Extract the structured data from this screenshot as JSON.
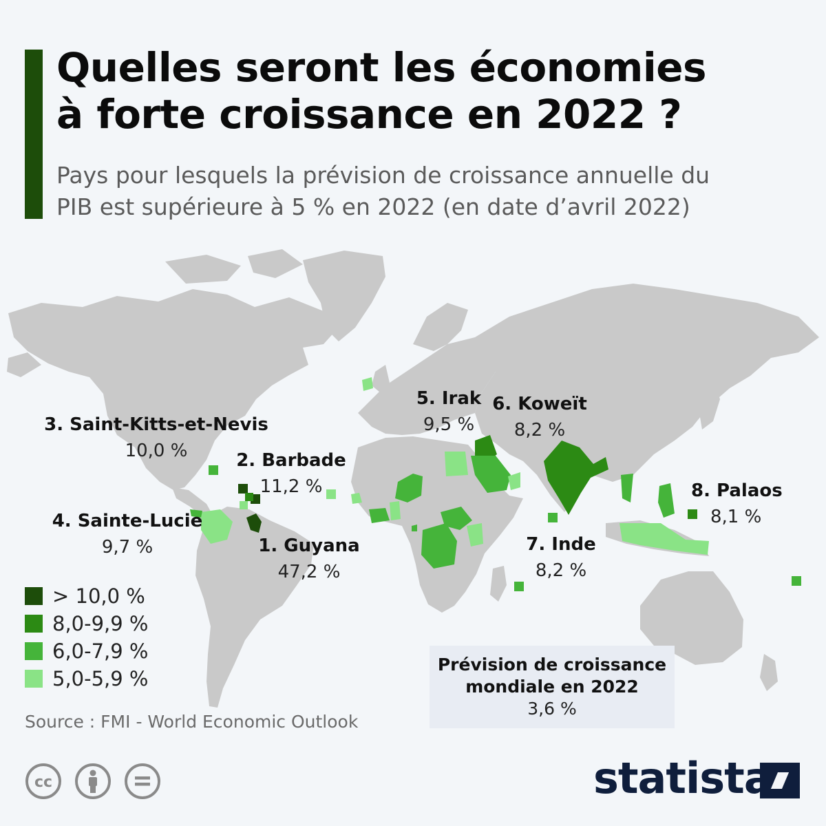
{
  "title_line1": "Quelles seront les économies",
  "title_line2": "à forte croissance en 2022 ?",
  "subtitle_line1": "Pays pour lesquels la prévision de croissance annuelle du",
  "subtitle_line2": "PIB est supérieure à 5 % en 2022 (en date d’avril 2022)",
  "colors": {
    "land": "#c9c9c9",
    "gt10": "#1d4d0a",
    "c8_9": "#2c8a14",
    "c6_7": "#45b43a",
    "c5": "#8ae386",
    "accent": "#1d4d0a",
    "brand": "#0f1e3c"
  },
  "callouts": [
    {
      "rank_name": "1. Guyana",
      "value": "47,2 %"
    },
    {
      "rank_name": "2. Barbade",
      "value": "11,2 %"
    },
    {
      "rank_name": "3. Saint-Kitts-et-Nevis",
      "value": "10,0 %"
    },
    {
      "rank_name": "4. Sainte-Lucie",
      "value": "9,7 %"
    },
    {
      "rank_name": "5. Irak",
      "value": "9,5 %"
    },
    {
      "rank_name": "6. Koweït",
      "value": "8,2 %"
    },
    {
      "rank_name": "7. Inde",
      "value": "8,2 %"
    },
    {
      "rank_name": "8. Palaos",
      "value": "8,1 %"
    }
  ],
  "legend": [
    {
      "label": "> 10,0 %",
      "color": "#1d4d0a"
    },
    {
      "label": "8,0-9,9 %",
      "color": "#2c8a14"
    },
    {
      "label": "6,0-7,9 %",
      "color": "#45b43a"
    },
    {
      "label": "5,0-5,9 %",
      "color": "#8ae386"
    }
  ],
  "world_box": {
    "title_line1": "Prévision de croissance",
    "title_line2": "mondiale en 2022",
    "value": "3,6 %"
  },
  "source": "Source : FMI - World Economic Outlook",
  "brand": "statista",
  "license_icons": [
    "creative-commons-icon",
    "attribution-icon",
    "no-derivatives-icon"
  ]
}
